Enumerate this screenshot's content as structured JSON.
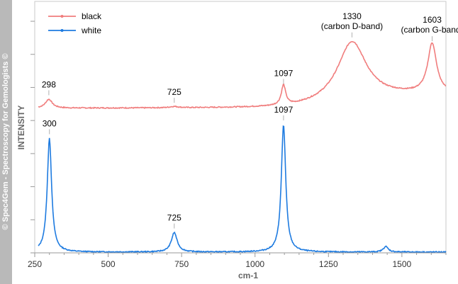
{
  "watermark": "© Spec4Gem - Spectroscopy for Gemologists ©",
  "colors": {
    "black_series": "#f07d7d",
    "white_series": "#1e7be0",
    "strip": "#b9b9b9",
    "frame": "#c8c8c8"
  },
  "chart_data": {
    "type": "line",
    "xlabel": "cm-1",
    "ylabel": "INTENSITY",
    "xlim": [
      250,
      1650
    ],
    "ylim": [
      0,
      1
    ],
    "xticks": [
      250,
      500,
      750,
      1000,
      1250,
      1500
    ],
    "grid": false,
    "legend_position": "top-left",
    "series": [
      {
        "name": "black",
        "color": "#f07d7d",
        "peaks": [
          {
            "x": 298,
            "y": 0.61
          },
          {
            "x": 725,
            "y": 0.58
          },
          {
            "x": 1097,
            "y": 0.655
          },
          {
            "x": 1330,
            "y": 0.84
          },
          {
            "x": 1603,
            "y": 0.825
          }
        ]
      },
      {
        "name": "white",
        "color": "#1e7be0",
        "peaks": [
          {
            "x": 300,
            "y": 0.455
          },
          {
            "x": 725,
            "y": 0.08
          },
          {
            "x": 1097,
            "y": 0.51
          },
          {
            "x": 1445,
            "y": 0.025
          }
        ]
      }
    ],
    "annotations": [
      {
        "text": "298",
        "x": 298,
        "y": 0.61
      },
      {
        "text": "725",
        "x": 725,
        "y": 0.58
      },
      {
        "text": "1097",
        "x": 1097,
        "y": 0.655
      },
      {
        "text": "1330",
        "text2": "(carbon D-band)",
        "x": 1330,
        "y": 0.84
      },
      {
        "text": "1603",
        "text2": "(carbon G-band)",
        "x": 1603,
        "y": 0.825
      },
      {
        "text": "300",
        "x": 300,
        "y": 0.455
      },
      {
        "text": "725",
        "x": 725,
        "y": 0.08
      },
      {
        "text": "1097",
        "x": 1097,
        "y": 0.51
      }
    ]
  }
}
